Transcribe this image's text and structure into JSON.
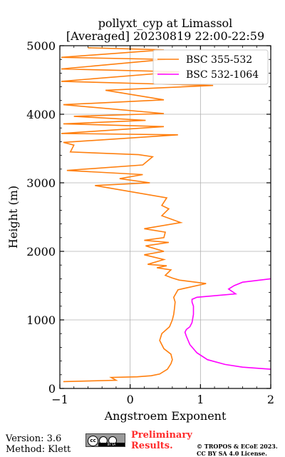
{
  "title": {
    "line1": "pollyxt_cyp at Limassol",
    "line2": "[Averaged] 20230819 22:00-22:59"
  },
  "footer": {
    "version": "Version: 3.6",
    "method": "Method: Klett",
    "preliminary": "Preliminary Results.",
    "copyright_line1": "© TROPOS & ECoE 2023.",
    "copyright_line2": "CC BY SA 4.0 License.",
    "license_badge": "BY SA"
  },
  "chart_data": {
    "type": "line",
    "orientation": "vertical-profile",
    "xlabel": "Angstroem Exponent",
    "ylabel": "Height (m)",
    "xlim": [
      -1,
      2
    ],
    "ylim": [
      0,
      5000
    ],
    "xticks": [
      -1,
      0,
      1,
      2
    ],
    "yticks": [
      0,
      1000,
      2000,
      3000,
      4000,
      5000
    ],
    "grid": true,
    "legend_position": "top-right",
    "series": [
      {
        "name": "BSC 355-532",
        "color": "#ff7f0e",
        "x": [
          -0.95,
          -0.2,
          -0.27,
          0.1,
          0.3,
          0.42,
          0.53,
          0.58,
          0.6,
          0.58,
          0.48,
          0.42,
          0.45,
          0.56,
          0.6,
          0.62,
          0.63,
          0.64,
          0.62,
          0.68,
          1.08,
          0.7,
          0.6,
          0.5,
          0.58,
          0.38,
          0.52,
          0.25,
          0.48,
          0.2,
          0.48,
          0.22,
          0.55,
          0.2,
          0.48,
          0.5,
          0.2,
          0.72,
          0.45,
          0.55,
          0.45,
          0.52,
          -0.5,
          0.28,
          -0.15,
          0.18,
          -0.9,
          0.18,
          0.32,
          0.12,
          -0.85,
          -0.8,
          -0.95,
          0.68,
          -0.98,
          0.48,
          -0.95,
          0.22,
          -0.8,
          0.48,
          -0.95,
          0.48,
          -0.35,
          1.18,
          -0.98,
          0.7,
          -0.98,
          0.5,
          -0.98,
          0.48,
          -0.6
        ],
        "y": [
          100,
          120,
          160,
          170,
          185,
          210,
          280,
          360,
          420,
          500,
          580,
          700,
          800,
          900,
          1000,
          1080,
          1160,
          1260,
          1330,
          1440,
          1530,
          1580,
          1610,
          1650,
          1730,
          1760,
          1790,
          1810,
          1880,
          1950,
          2000,
          2080,
          2130,
          2160,
          2200,
          2280,
          2330,
          2420,
          2520,
          2620,
          2670,
          2780,
          2960,
          3000,
          3060,
          3120,
          3180,
          3260,
          3380,
          3410,
          3450,
          3550,
          3590,
          3700,
          3720,
          3820,
          3860,
          3910,
          3970,
          4010,
          4140,
          4210,
          4350,
          4420,
          4480,
          4620,
          4660,
          4800,
          4830,
          4940,
          4970
        ]
      },
      {
        "name": "BSC 532-1064",
        "color": "#ff00ff",
        "x": [
          2.0,
          1.6,
          1.35,
          1.1,
          0.95,
          0.85,
          0.8,
          0.78,
          0.8,
          0.85,
          0.88,
          0.9,
          0.9,
          0.88,
          0.88,
          0.95,
          1.5,
          1.4,
          1.48,
          1.6,
          2.0
        ],
        "y": [
          280,
          310,
          350,
          420,
          520,
          640,
          760,
          820,
          860,
          900,
          960,
          1080,
          1200,
          1260,
          1300,
          1330,
          1380,
          1450,
          1500,
          1550,
          1600
        ]
      }
    ]
  }
}
